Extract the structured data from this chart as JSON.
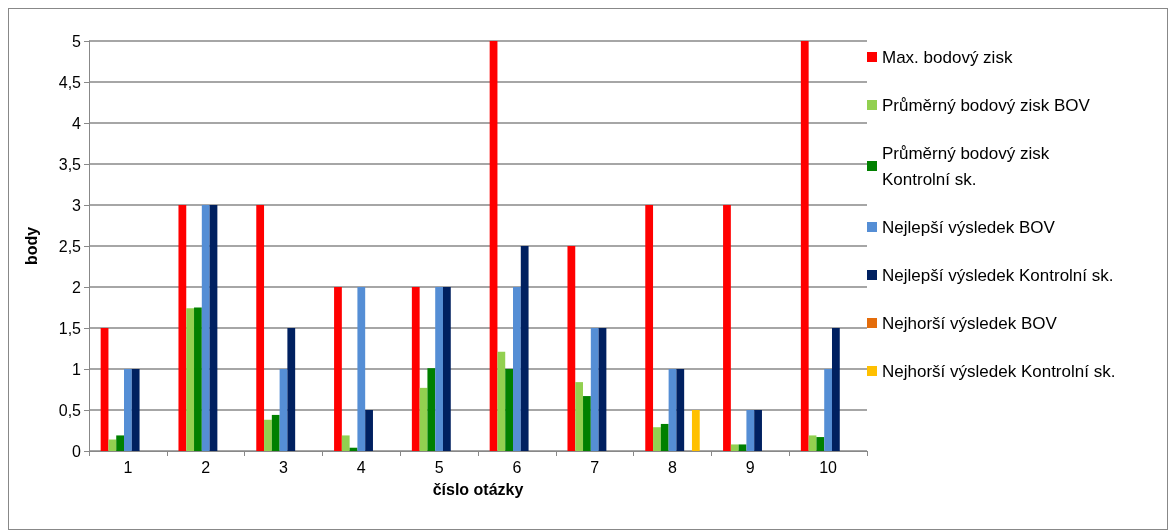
{
  "chart_data": {
    "type": "bar",
    "xlabel": "číslo otázky",
    "ylabel": "body",
    "categories": [
      "1",
      "2",
      "3",
      "4",
      "5",
      "6",
      "7",
      "8",
      "9",
      "10"
    ],
    "series": [
      {
        "name": "Max. bodový zisk",
        "color": "#ff0000",
        "values": [
          1.5,
          3,
          3,
          2,
          2,
          5,
          2.5,
          3,
          3,
          5
        ]
      },
      {
        "name": "Průměrný bodový zisk BOV",
        "color": "#92d050",
        "values": [
          0.14,
          1.74,
          0.38,
          0.19,
          0.77,
          1.21,
          0.84,
          0.29,
          0.08,
          0.19
        ]
      },
      {
        "name": "Průměrný bodový zisk Kontrolní sk.",
        "color": "#008000",
        "values": [
          0.19,
          1.75,
          0.44,
          0.04,
          1.01,
          1.0,
          0.67,
          0.33,
          0.08,
          0.17
        ]
      },
      {
        "name": "Nejlepší výsledek BOV",
        "color": "#558ed5",
        "values": [
          1,
          3,
          1,
          2,
          2,
          2,
          1.5,
          1,
          0.5,
          1
        ]
      },
      {
        "name": "Nejlepší výsledek Kontrolní sk.",
        "color": "#002060",
        "values": [
          1,
          3,
          1.5,
          0.5,
          2,
          2.5,
          1.5,
          1,
          0.5,
          1.5
        ]
      },
      {
        "name": "Nejhorší výsledek BOV",
        "color": "#e46c0a",
        "values": [
          0,
          0,
          0,
          0,
          0,
          0,
          0,
          0,
          0,
          0
        ]
      },
      {
        "name": "Nejhorší výsledek Kontrolní sk.",
        "color": "#ffc000",
        "values": [
          0,
          0,
          0,
          0,
          0,
          0,
          0,
          0.5,
          0,
          0
        ]
      }
    ],
    "ylim": [
      0,
      5
    ],
    "yticks": [
      0,
      {
        "value": 0.5,
        "label": "0,5"
      },
      1,
      {
        "value": 1.5,
        "label": "1,5"
      },
      2,
      {
        "value": 2.5,
        "label": "2,5"
      },
      3,
      {
        "value": 3.5,
        "label": "3,5"
      },
      4,
      {
        "value": 4.5,
        "label": "4,5"
      },
      5
    ],
    "grid": "y",
    "legend": "right"
  }
}
